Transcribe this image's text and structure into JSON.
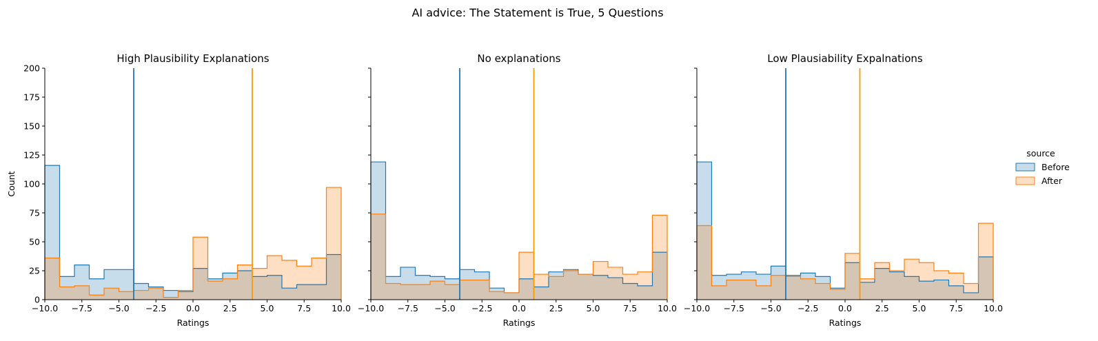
{
  "figure": {
    "suptitle": "AI advice: The Statement is True, 5 Questions"
  },
  "legend": {
    "title": "source",
    "entries": [
      {
        "label": "Before",
        "edge": "#1f77b4",
        "fill": "#1f77b4"
      },
      {
        "label": "After",
        "edge": "#ff7f0e",
        "fill": "#ff7f0e"
      }
    ]
  },
  "chart_data": [
    {
      "type": "histogram",
      "title": "High Plausibility Explanations",
      "xlabel": "Ratings",
      "ylabel": "Count",
      "xlim": [
        -10,
        10
      ],
      "ylim": [
        0,
        200
      ],
      "x_ticks": [
        "−10.0",
        "−7.5",
        "−5.0",
        "−2.5",
        "0.0",
        "2.5",
        "5.0",
        "7.5",
        "10.0"
      ],
      "y_ticks": [
        "0",
        "25",
        "50",
        "75",
        "100",
        "125",
        "150",
        "175",
        "200"
      ],
      "bin_edges": [
        -10,
        -9,
        -8,
        -7,
        -6,
        -5,
        -4,
        -3,
        -2,
        -1,
        0,
        1,
        2,
        3,
        4,
        5,
        6,
        7,
        8,
        9,
        10
      ],
      "series": [
        {
          "name": "Before",
          "values": [
            116,
            20,
            30,
            18,
            26,
            26,
            14,
            11,
            8,
            7,
            27,
            18,
            23,
            25,
            20,
            21,
            10,
            13,
            13,
            39
          ]
        },
        {
          "name": "After",
          "values": [
            36,
            11,
            12,
            4,
            10,
            7,
            8,
            10,
            2,
            8,
            54,
            16,
            18,
            30,
            27,
            38,
            34,
            29,
            36,
            97
          ]
        }
      ],
      "vlines": [
        {
          "x": -4,
          "color": "#1f77b4"
        },
        {
          "x": 4,
          "color": "#ff9900"
        }
      ]
    },
    {
      "type": "histogram",
      "title": "No explanations",
      "xlabel": "Ratings",
      "ylabel": "",
      "xlim": [
        -10,
        10
      ],
      "ylim": [
        0,
        200
      ],
      "x_ticks": [
        "−10.0",
        "−7.5",
        "−5.0",
        "−2.5",
        "0.0",
        "2.5",
        "5.0",
        "7.5",
        "10.0"
      ],
      "y_ticks": [],
      "bin_edges": [
        -10,
        -9,
        -8,
        -7,
        -6,
        -5,
        -4,
        -3,
        -2,
        -1,
        0,
        1,
        2,
        3,
        4,
        5,
        6,
        7,
        8,
        9,
        10
      ],
      "series": [
        {
          "name": "Before",
          "values": [
            119,
            20,
            28,
            21,
            20,
            18,
            26,
            24,
            10,
            6,
            18,
            11,
            24,
            26,
            22,
            21,
            19,
            14,
            12,
            41
          ]
        },
        {
          "name": "After",
          "values": [
            74,
            14,
            13,
            13,
            16,
            13,
            17,
            17,
            7,
            6,
            41,
            22,
            20,
            25,
            22,
            33,
            28,
            22,
            24,
            73
          ]
        }
      ],
      "vlines": [
        {
          "x": -4,
          "color": "#1f77b4"
        },
        {
          "x": 1,
          "color": "#ff9900"
        }
      ]
    },
    {
      "type": "histogram",
      "title": "Low Plausiability Expalnations",
      "xlabel": "Ratings",
      "ylabel": "",
      "xlim": [
        -10,
        10
      ],
      "ylim": [
        0,
        200
      ],
      "x_ticks": [
        "−10.0",
        "−7.5",
        "−5.0",
        "−2.5",
        "0.0",
        "2.5",
        "5.0",
        "7.5",
        "10.0"
      ],
      "y_ticks": [],
      "bin_edges": [
        -10,
        -9,
        -8,
        -7,
        -6,
        -5,
        -4,
        -3,
        -2,
        -1,
        0,
        1,
        2,
        3,
        4,
        5,
        6,
        7,
        8,
        9,
        10
      ],
      "series": [
        {
          "name": "Before",
          "values": [
            119,
            21,
            22,
            24,
            22,
            29,
            21,
            23,
            20,
            10,
            32,
            15,
            27,
            24,
            20,
            16,
            17,
            12,
            6,
            37
          ]
        },
        {
          "name": "After",
          "values": [
            64,
            12,
            17,
            17,
            12,
            21,
            20,
            18,
            14,
            9,
            40,
            18,
            32,
            25,
            35,
            32,
            25,
            23,
            14,
            66
          ]
        }
      ],
      "vlines": [
        {
          "x": -4,
          "color": "#1f77b4"
        },
        {
          "x": 1,
          "color": "#ff9900"
        }
      ]
    }
  ]
}
